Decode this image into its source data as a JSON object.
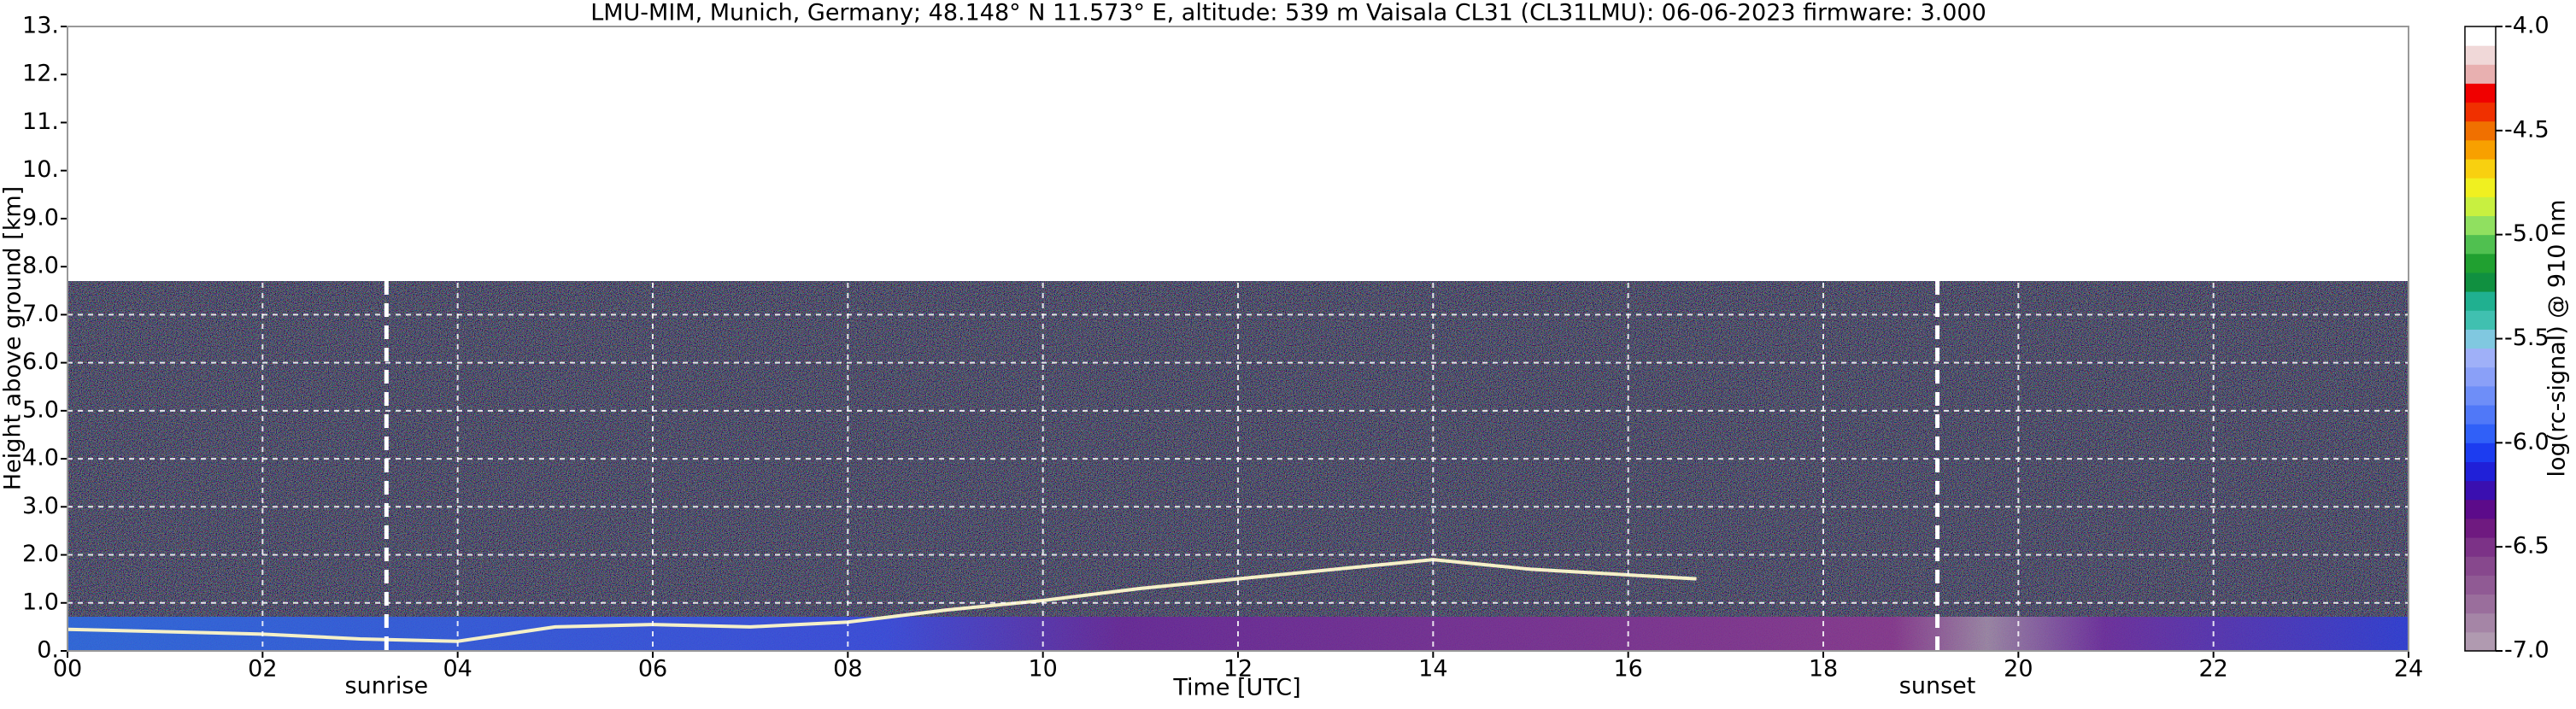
{
  "chart_data": {
    "type": "heatmap",
    "title": "LMU-MIM, Munich, Germany; 48.148° N 11.573° E, altitude: 539 m    Vaisala CL31 (CL31LMU): 06-06-2023    firmware: 3.000",
    "x_label": "Time [UTC]",
    "y_label": "Height above ground [km]",
    "xlim": [
      0,
      24
    ],
    "ylim": [
      0,
      13
    ],
    "xticks": [
      {
        "value": 0,
        "label": "00"
      },
      {
        "value": 2,
        "label": "02"
      },
      {
        "value": 4,
        "label": "04"
      },
      {
        "value": 6,
        "label": "06"
      },
      {
        "value": 8,
        "label": "08"
      },
      10,
      12,
      14,
      16,
      18,
      20,
      22,
      24
    ],
    "yticks": [
      {
        "value": 0,
        "label": "0."
      },
      {
        "value": 1,
        "label": "1.0"
      },
      {
        "value": 2,
        "label": "2.0"
      },
      {
        "value": 3,
        "label": "3.0"
      },
      {
        "value": 4,
        "label": "4.0"
      },
      {
        "value": 5,
        "label": "5.0"
      },
      {
        "value": 6,
        "label": "6.0"
      },
      {
        "value": 7,
        "label": "7.0"
      },
      {
        "value": 8,
        "label": "8.0"
      },
      {
        "value": 9,
        "label": "9.0"
      },
      {
        "value": 10,
        "label": "10."
      },
      {
        "value": 11,
        "label": "11."
      },
      {
        "value": 12,
        "label": "12."
      },
      {
        "value": 13,
        "label": "13."
      }
    ],
    "grid": true,
    "grid_color": "#ffffff",
    "annotations": [
      {
        "text": "sunrise",
        "x": 3.27
      },
      {
        "text": "sunset",
        "x": 19.17
      }
    ],
    "layer": {
      "color": "#f5f0c8",
      "x": [
        0,
        1,
        2,
        3,
        4,
        5,
        6,
        7,
        8,
        9,
        10,
        11,
        12,
        13,
        14,
        15,
        16.7
      ],
      "values": [
        0.45,
        0.4,
        0.35,
        0.25,
        0.2,
        0.5,
        0.55,
        0.5,
        0.6,
        0.85,
        1.05,
        1.3,
        1.5,
        1.7,
        1.9,
        1.7,
        1.5
      ]
    },
    "colorbar": {
      "label": "log(rc-signal) @ 910 nm",
      "lim": [
        -7,
        -4
      ],
      "ticks": [
        {
          "value": -7,
          "label": "-7.0"
        },
        -6.5,
        {
          "value": -6,
          "label": "-6.0"
        },
        -5.5,
        {
          "value": -5,
          "label": "-5.0"
        },
        -4.5,
        {
          "value": -4,
          "label": "-4.0"
        }
      ],
      "colors": [
        "#b09ab0",
        "#a585a6",
        "#9a6e9c",
        "#905a94",
        "#87488d",
        "#7c3287",
        "#6f1a80",
        "#5c0b8a",
        "#3a0fb0",
        "#2020d8",
        "#1c3cf0",
        "#3060f8",
        "#5078f8",
        "#6e8ef8",
        "#8aa0f8",
        "#9fb0f8",
        "#80c8e0",
        "#40c0b0",
        "#20b090",
        "#109040",
        "#20a030",
        "#50c050",
        "#90e060",
        "#c8f040",
        "#f0f020",
        "#f8d010",
        "#f8a000",
        "#f07000",
        "#f03000",
        "#f00000",
        "#e8b0b0",
        "#f0d8d8",
        "#ffffff"
      ]
    }
  }
}
